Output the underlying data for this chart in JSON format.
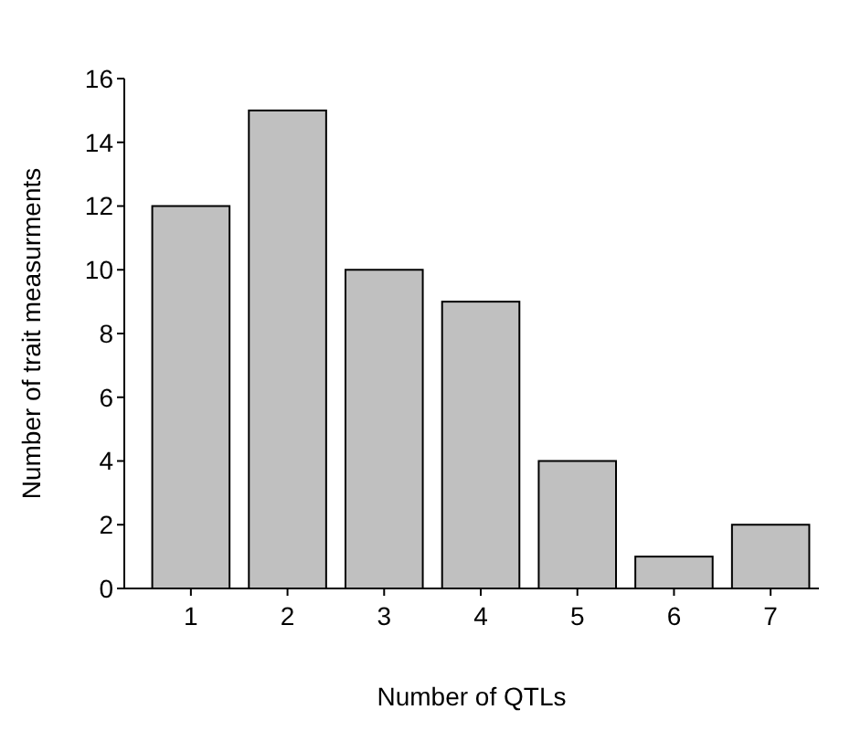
{
  "chart_data": {
    "type": "bar",
    "xlabel": "Number of QTLs",
    "ylabel": "Number of trait measurments",
    "categories": [
      "1",
      "2",
      "3",
      "4",
      "5",
      "6",
      "7"
    ],
    "values": [
      12,
      15,
      10,
      9,
      4,
      1,
      2
    ],
    "color": "#c0c0c0",
    "ylim": [
      0,
      16
    ],
    "yticks": [
      0,
      2,
      4,
      6,
      8,
      10,
      12,
      14,
      16
    ],
    "grid": false
  }
}
